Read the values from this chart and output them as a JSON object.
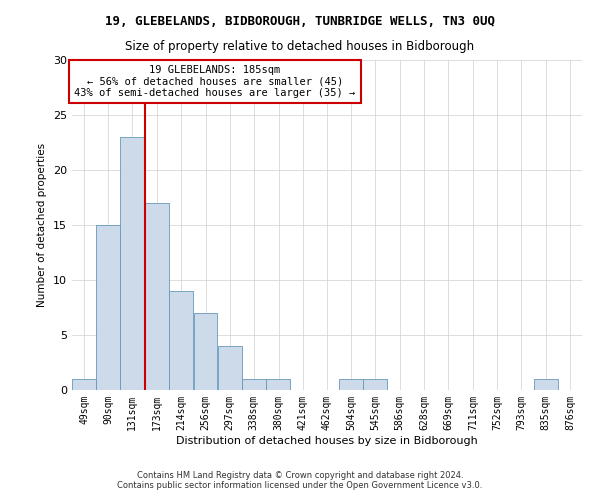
{
  "title": "19, GLEBELANDS, BIDBOROUGH, TUNBRIDGE WELLS, TN3 0UQ",
  "subtitle": "Size of property relative to detached houses in Bidborough",
  "xlabel": "Distribution of detached houses by size in Bidborough",
  "ylabel": "Number of detached properties",
  "bar_values": [
    1,
    15,
    23,
    17,
    9,
    7,
    4,
    1,
    1,
    0,
    0,
    1,
    1,
    0,
    0,
    0,
    0,
    0,
    0,
    1,
    0
  ],
  "bin_labels": [
    "49sqm",
    "90sqm",
    "131sqm",
    "173sqm",
    "214sqm",
    "256sqm",
    "297sqm",
    "338sqm",
    "380sqm",
    "421sqm",
    "462sqm",
    "504sqm",
    "545sqm",
    "586sqm",
    "628sqm",
    "669sqm",
    "711sqm",
    "752sqm",
    "793sqm",
    "835sqm",
    "876sqm"
  ],
  "bar_color": "#ccdaea",
  "bar_edge_color": "#6699bb",
  "annotation_box_text": "19 GLEBELANDS: 185sqm\n← 56% of detached houses are smaller (45)\n43% of semi-detached houses are larger (35) →",
  "annotation_box_color": "#ffffff",
  "annotation_box_edge_color": "#cc0000",
  "vline_color": "#cc0000",
  "ylim": [
    0,
    30
  ],
  "yticks": [
    0,
    5,
    10,
    15,
    20,
    25,
    30
  ],
  "footer_line1": "Contains HM Land Registry data © Crown copyright and database right 2024.",
  "footer_line2": "Contains public sector information licensed under the Open Government Licence v3.0.",
  "bin_edges": [
    49,
    90,
    131,
    173,
    214,
    256,
    297,
    338,
    380,
    421,
    462,
    504,
    545,
    586,
    628,
    669,
    711,
    752,
    793,
    835,
    876
  ],
  "bin_width": 41,
  "vline_x": 173
}
